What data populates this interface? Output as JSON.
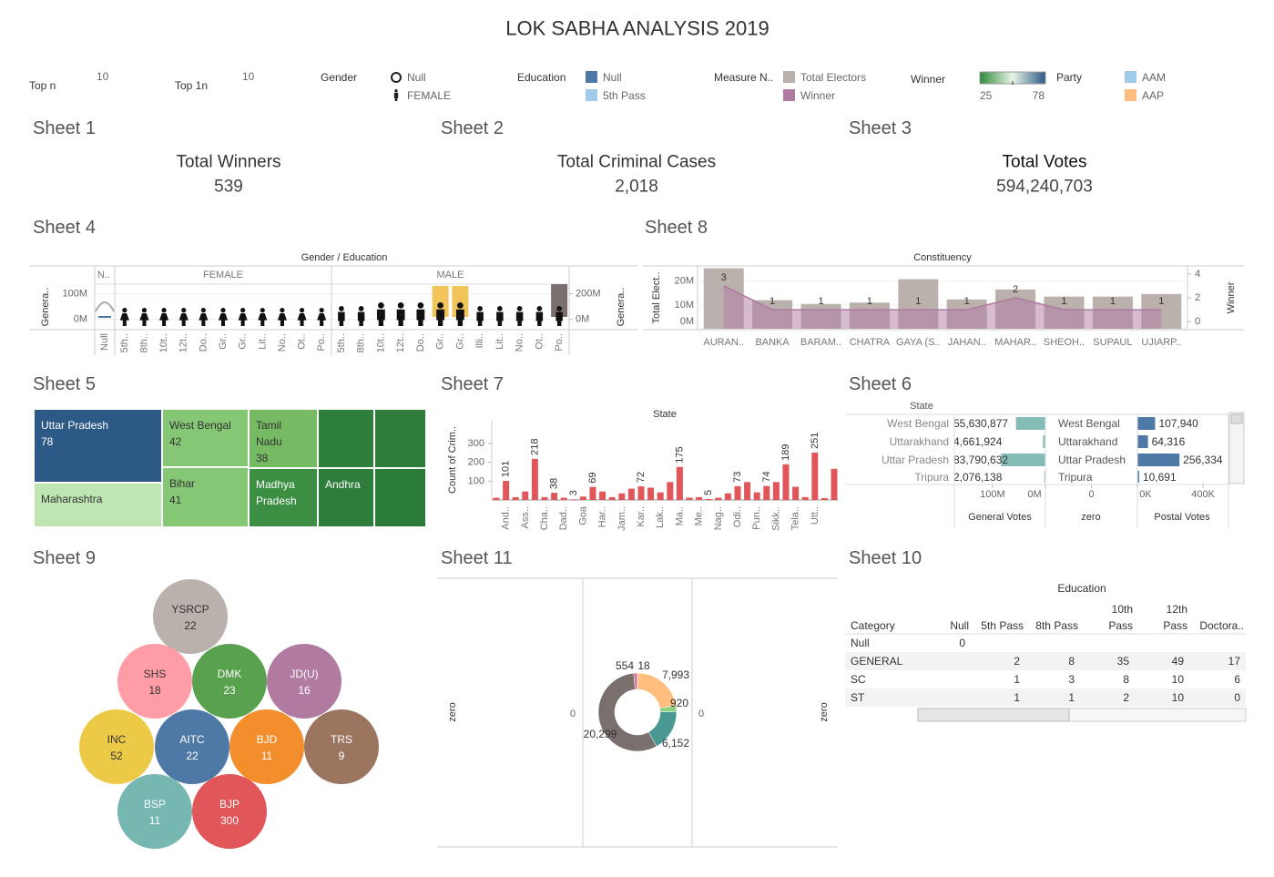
{
  "title": "LOK SABHA ANALYSIS 2019",
  "filters": {
    "top_n": {
      "label": "Top n",
      "value": "10"
    },
    "top_1n": {
      "label": "Top 1n",
      "value": "10"
    },
    "gender": {
      "label": "Gender",
      "items": [
        "Null",
        "FEMALE"
      ]
    },
    "education": {
      "label": "Education",
      "items": [
        {
          "name": "Null",
          "color": "#4e79a7"
        },
        {
          "name": "5th Pass",
          "color": "#a0cbe8"
        }
      ]
    },
    "measure": {
      "label": "Measure N..",
      "items": [
        {
          "name": "Total Electors",
          "color": "#bab0ac"
        },
        {
          "name": "Winner",
          "color": "#b07aa1"
        }
      ]
    },
    "winner": {
      "label": "Winner",
      "min": 25,
      "max": 78,
      "colors": [
        "#2f8a3a",
        "#e8f4e6",
        "#2c5985"
      ]
    },
    "party": {
      "label": "Party",
      "items": [
        {
          "name": "AAM",
          "color": "#a0cbe8"
        },
        {
          "name": "AAP",
          "color": "#ffbe7d"
        }
      ]
    }
  },
  "sheet_1": {
    "title": "Sheet 1",
    "label": "Total Winners",
    "value": "539"
  },
  "sheet_2": {
    "title": "Sheet 2",
    "label": "Total Criminal Cases",
    "value": "2,018"
  },
  "sheet_3": {
    "title": "Sheet 3",
    "label": "Total Votes",
    "value": "594,240,703"
  },
  "sheet_4": {
    "title": "Sheet 4",
    "header": "Gender / Education",
    "y_label": "Genera..",
    "y2_label": "Genera..",
    "ylim": [
      -40000000,
      137000000
    ],
    "yticks": [
      {
        "value": 0,
        "label": "0M"
      },
      {
        "value": 100000000,
        "label": "100M"
      }
    ],
    "y2lim": [
      -80000000,
      274000000
    ],
    "y2ticks": [
      {
        "value": 0,
        "label": "0M"
      },
      {
        "value": 200000000,
        "label": "200M"
      }
    ],
    "groups": [
      {
        "name": "N..",
        "categories": [
          "Null"
        ]
      },
      {
        "name": "FEMALE",
        "categories": [
          "5th..",
          "8th..",
          "10t..",
          "12t..",
          "Do..",
          "Gr..",
          "Gr..",
          "Lit..",
          "No..",
          "Ot..",
          "Po.."
        ]
      },
      {
        "name": "MALE",
        "categories": [
          "5th..",
          "8th..",
          "10t..",
          "12t..",
          "Do..",
          "Gr..",
          "Gr..",
          "Illi..",
          "Lit..",
          "No..",
          "Ot..",
          "Po.."
        ]
      }
    ]
  },
  "sheet_8": {
    "title": "Sheet 8",
    "type": "bar",
    "header": "Constituency",
    "y_label": "Total Elect..",
    "y2_label": "Winner",
    "categories": [
      "AURAN..",
      "BANKA",
      "BARAM..",
      "CHATRA",
      "GAYA (S..",
      "JAHAN..",
      "MAHAR..",
      "SHEOH..",
      "SUPAUL",
      "UJIARP.."
    ],
    "series": [
      {
        "name": "Total Electors",
        "color": "#bab0ac",
        "values": [
          25400000,
          12000000,
          10400000,
          11000000,
          20800000,
          12300000,
          16500000,
          13500000,
          13500000,
          14600000
        ]
      },
      {
        "name": "Winner",
        "color": "#b07aa1",
        "axis": "y2",
        "values": [
          3,
          1,
          1,
          1,
          1,
          1,
          2,
          1,
          1,
          1
        ]
      }
    ],
    "ylim": [
      0,
      26000000
    ],
    "yticks": [
      {
        "value": 0,
        "label": "0M"
      },
      {
        "value": 10000000,
        "label": "10M"
      },
      {
        "value": 20000000,
        "label": "20M"
      }
    ],
    "y2lim": [
      -0.6,
      4.6
    ],
    "y2ticks": [
      0,
      2,
      4
    ]
  },
  "sheet_5": {
    "title": "Sheet 5",
    "type": "treemap",
    "tiles": [
      {
        "name": "Uttar Pradesh",
        "value": 78,
        "color": "#2c5985",
        "text_color": "#ffffff"
      },
      {
        "name": "Maharashtra",
        "color": "#bfe5b3",
        "text_color": "#333333"
      },
      {
        "name": "West Bengal",
        "value": 42,
        "color": "#86c776",
        "text_color": "#333333"
      },
      {
        "name": "Bihar",
        "value": 41,
        "color": "#86c776",
        "text_color": "#333333"
      },
      {
        "name": "Tamil Nadu",
        "value": 38,
        "color": "#76bb63",
        "text_color": "#333333"
      },
      {
        "name": "Madhya Pradesh",
        "color": "#3b8e42",
        "text_color": "#ffffff"
      },
      {
        "name": "Andhra",
        "color": "#2e7d3b",
        "text_color": "#ffffff"
      }
    ]
  },
  "sheet_7": {
    "title": "Sheet 7",
    "type": "bar",
    "header": "State",
    "y_label": "Count of Crim..",
    "color": "#e15759",
    "categories": [
      null,
      "And..",
      null,
      "Ass..",
      null,
      "Cha..",
      null,
      "Dad..",
      null,
      "Goa",
      null,
      "Har..",
      null,
      "Jam..",
      null,
      "Kar..",
      null,
      "Lak..",
      null,
      "Ma..",
      null,
      "Me..",
      null,
      "Nag..",
      null,
      "Odi..",
      null,
      "Pun..",
      null,
      "Sikk..",
      null,
      "Tela..",
      null,
      "Utt..",
      null,
      null
    ],
    "values": [
      12,
      101,
      15,
      45,
      218,
      15,
      38,
      12,
      3,
      18,
      69,
      45,
      15,
      35,
      60,
      72,
      65,
      40,
      95,
      175,
      12,
      15,
      5,
      12,
      35,
      73,
      95,
      40,
      74,
      95,
      189,
      70,
      15,
      251,
      10,
      165
    ],
    "value_labels": [
      null,
      "101",
      null,
      null,
      "218",
      null,
      "38",
      null,
      "3",
      null,
      "69",
      null,
      null,
      null,
      null,
      "72",
      null,
      null,
      null,
      "175",
      null,
      null,
      "5",
      null,
      null,
      "73",
      null,
      null,
      "74",
      null,
      "189",
      null,
      null,
      "251",
      null,
      null
    ],
    "ylim": [
      0,
      420
    ],
    "yticks": [
      100,
      200,
      300
    ]
  },
  "sheet_6": {
    "title": "Sheet 6",
    "header": "State",
    "rows": [
      "West Bengal",
      "Uttarakhand",
      "Uttar Pradesh",
      "Tripura"
    ],
    "general": {
      "name": "General Votes",
      "color": "#86bcb6",
      "values": [
        55630877,
        4661924,
        83790632,
        2076138
      ],
      "value_labels": [
        "55,630,877",
        "4,661,924",
        "83,790,632",
        "2,076,138"
      ],
      "xlim": [
        172000000,
        0
      ],
      "xticks": [
        {
          "value": 100000000,
          "label": "100M"
        },
        {
          "value": 0,
          "label": "0M"
        }
      ]
    },
    "zero": {
      "name": "zero",
      "xlim": [
        -1,
        1
      ],
      "xticks": [
        0
      ]
    },
    "postal": {
      "name": "Postal Votes",
      "color": "#4e79a7",
      "values": [
        107940,
        64316,
        256334,
        10691
      ],
      "value_labels": [
        "107,940",
        "64,316",
        "256,334",
        "10,691"
      ],
      "xlim": [
        0,
        555000
      ],
      "xticks": [
        {
          "value": 0,
          "label": "0K"
        },
        {
          "value": 400000,
          "label": "400K"
        }
      ]
    }
  },
  "sheet_9": {
    "title": "Sheet 9",
    "type": "bubble",
    "bubbles": [
      {
        "name": "YSRCP",
        "value": 22,
        "color": "#bab0ac"
      },
      {
        "name": "SHS",
        "value": 18,
        "color": "#ff9da7"
      },
      {
        "name": "DMK",
        "value": 23,
        "color": "#59a14f"
      },
      {
        "name": "JD(U)",
        "value": 16,
        "color": "#b07aa1"
      },
      {
        "name": "INC",
        "value": 52,
        "color": "#edc948"
      },
      {
        "name": "AITC",
        "value": 22,
        "color": "#4e79a7"
      },
      {
        "name": "BJD",
        "value": 11,
        "color": "#f28e2b"
      },
      {
        "name": "TRS",
        "value": 9,
        "color": "#9c755f"
      },
      {
        "name": "BSP",
        "value": 11,
        "color": "#76b7b2"
      },
      {
        "name": "BJP",
        "value": 300,
        "color": "#e15759"
      }
    ]
  },
  "sheet_11": {
    "title": "Sheet 11",
    "type": "donut",
    "axis_label": "zero",
    "tick": 0,
    "values": [
      7993,
      920,
      6152,
      20299,
      554,
      18
    ],
    "value_labels": [
      "7,993",
      "920",
      "6,152",
      "20,299",
      "554",
      "18"
    ],
    "colors": [
      "#ffbe7d",
      "#8cd17d",
      "#499894",
      "#79706e",
      "#d37295",
      "#a0cbe8"
    ]
  },
  "sheet_10": {
    "title": "Sheet 10",
    "header": "Education",
    "columns": [
      "Category",
      "Null",
      "5th Pass",
      "8th Pass",
      "10th Pass",
      "12th Pass",
      "Doctora.."
    ],
    "rows": [
      [
        "Null",
        0,
        null,
        null,
        null,
        null,
        null
      ],
      [
        "GENERAL",
        null,
        2,
        8,
        35,
        49,
        17
      ],
      [
        "SC",
        null,
        1,
        3,
        8,
        10,
        6
      ],
      [
        "ST",
        null,
        1,
        1,
        2,
        10,
        0
      ]
    ]
  }
}
